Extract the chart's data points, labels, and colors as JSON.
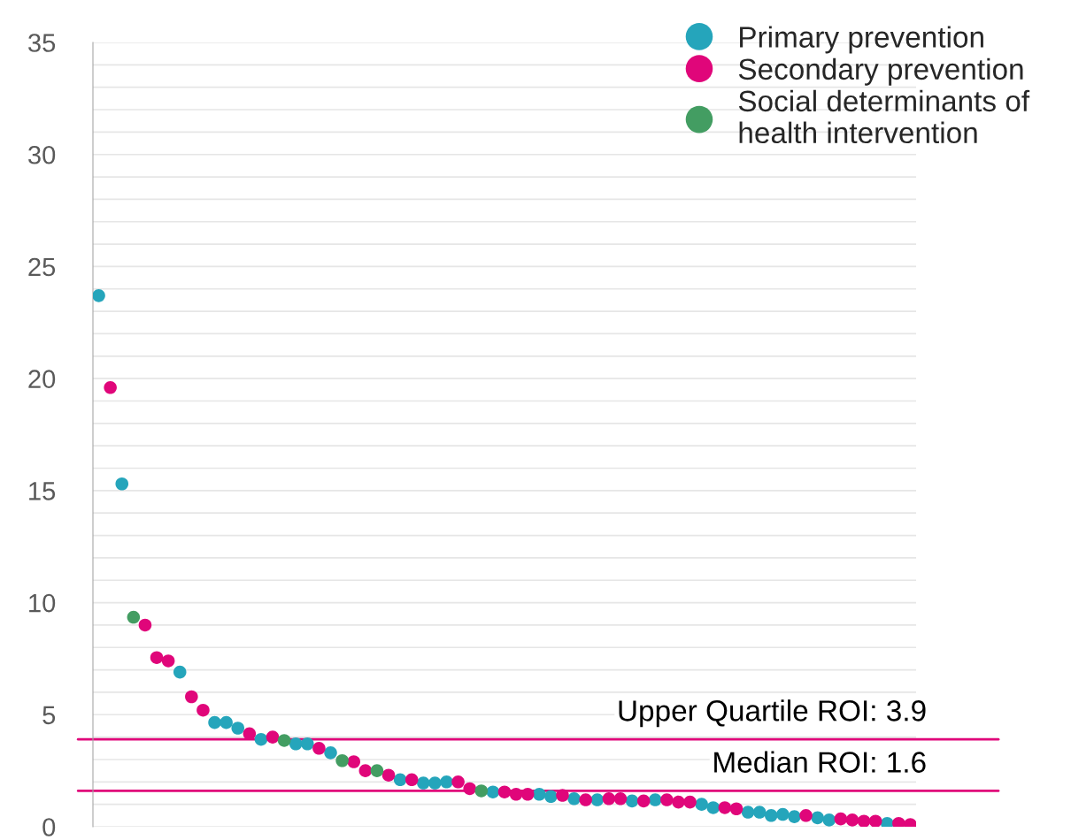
{
  "chart_data": {
    "type": "scatter",
    "categories": [
      null,
      null,
      null,
      null,
      null,
      null,
      null,
      null,
      null,
      null,
      null,
      null,
      null,
      null,
      null,
      null,
      null,
      null,
      null,
      null,
      null,
      null,
      null,
      null,
      null,
      null,
      null,
      null,
      null,
      null,
      null,
      null,
      null,
      null,
      null,
      null,
      null,
      null,
      null,
      null,
      null,
      null,
      null,
      null,
      null,
      null,
      null,
      null,
      null,
      null,
      null,
      null,
      null,
      null,
      null,
      null,
      null,
      null,
      null,
      null,
      null,
      null,
      null,
      null,
      null,
      null,
      null,
      null,
      null,
      null,
      null
    ],
    "series": [
      {
        "name": "Primary prevention",
        "color": "#25a5bb",
        "values": [
          23.7,
          null,
          15.3,
          null,
          null,
          null,
          null,
          6.9,
          null,
          null,
          4.65,
          4.65,
          4.4,
          null,
          3.9,
          null,
          null,
          3.7,
          3.7,
          null,
          3.3,
          null,
          null,
          null,
          null,
          null,
          2.1,
          null,
          1.95,
          1.95,
          2.0,
          null,
          null,
          null,
          1.55,
          null,
          null,
          null,
          1.45,
          1.35,
          null,
          1.25,
          null,
          1.2,
          null,
          null,
          1.15,
          null,
          1.2,
          null,
          null,
          null,
          1.0,
          0.85,
          null,
          null,
          0.65,
          0.65,
          0.5,
          0.55,
          0.45,
          null,
          0.4,
          0.3,
          null,
          null,
          null,
          null,
          0.15,
          null,
          null
        ]
      },
      {
        "name": "Secondary prevention",
        "color": "#e0067a",
        "values": [
          null,
          19.6,
          null,
          null,
          9.0,
          7.55,
          7.4,
          null,
          5.8,
          5.2,
          null,
          null,
          null,
          4.15,
          null,
          4.0,
          null,
          null,
          null,
          3.5,
          null,
          null,
          2.9,
          2.5,
          null,
          2.3,
          null,
          2.1,
          null,
          null,
          null,
          2.0,
          1.7,
          null,
          null,
          1.55,
          1.45,
          1.45,
          null,
          null,
          1.4,
          null,
          1.2,
          null,
          1.25,
          1.25,
          null,
          1.15,
          null,
          1.2,
          1.1,
          1.1,
          null,
          null,
          0.85,
          0.8,
          null,
          null,
          null,
          null,
          null,
          0.5,
          null,
          null,
          0.35,
          0.3,
          0.25,
          0.25,
          null,
          0.15,
          0.1
        ]
      },
      {
        "name": "Social determinants of\nhealth intervention",
        "color": "#439d62",
        "values": [
          null,
          null,
          null,
          9.35,
          null,
          null,
          null,
          null,
          null,
          null,
          null,
          null,
          null,
          null,
          null,
          null,
          3.85,
          null,
          null,
          null,
          null,
          2.95,
          null,
          null,
          2.5,
          null,
          null,
          null,
          null,
          null,
          null,
          null,
          null,
          1.6,
          null,
          null,
          null,
          null,
          null,
          null,
          null,
          null,
          null,
          null,
          null,
          null,
          null,
          null,
          null,
          null,
          null,
          null,
          null,
          null,
          null,
          null,
          null,
          null,
          null,
          null,
          null,
          null,
          null,
          null,
          null,
          null,
          null,
          null,
          null,
          null,
          null
        ]
      }
    ],
    "ylim": [
      0,
      35
    ],
    "yticks": [
      0,
      {
        "value": 1,
        "label": null
      },
      {
        "value": 2,
        "label": null
      },
      {
        "value": 3,
        "label": null
      },
      {
        "value": 4,
        "label": null
      },
      5,
      {
        "value": 6,
        "label": null
      },
      {
        "value": 7,
        "label": null
      },
      {
        "value": 8,
        "label": null
      },
      {
        "value": 9,
        "label": null
      },
      10,
      {
        "value": 11,
        "label": null
      },
      {
        "value": 12,
        "label": null
      },
      {
        "value": 13,
        "label": null
      },
      {
        "value": 14,
        "label": null
      },
      15,
      {
        "value": 16,
        "label": null
      },
      {
        "value": 17,
        "label": null
      },
      {
        "value": 18,
        "label": null
      },
      {
        "value": 19,
        "label": null
      },
      20,
      {
        "value": 21,
        "label": null
      },
      {
        "value": 22,
        "label": null
      },
      {
        "value": 23,
        "label": null
      },
      {
        "value": 24,
        "label": null
      },
      25,
      {
        "value": 26,
        "label": null
      },
      {
        "value": 27,
        "label": null
      },
      {
        "value": 28,
        "label": null
      },
      {
        "value": 29,
        "label": null
      },
      30,
      {
        "value": 31,
        "label": null
      },
      {
        "value": 32,
        "label": null
      },
      {
        "value": 33,
        "label": null
      },
      {
        "value": 34,
        "label": null
      },
      35
    ],
    "ref_lines": [
      {
        "axis": "y",
        "value": 3.9,
        "label": "Upper Quartile ROI: 3.9",
        "color": "#e0067a"
      },
      {
        "axis": "y",
        "value": 1.6,
        "label": "Median ROI: 1.6",
        "color": "#e0067a"
      }
    ],
    "grid": "y",
    "legend": "top right",
    "marker": "circle",
    "tick_labels": "y"
  }
}
